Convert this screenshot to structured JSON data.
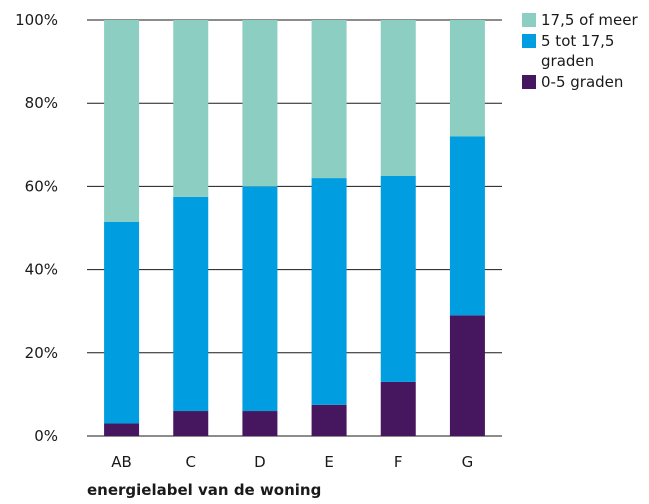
{
  "chart_data": {
    "type": "bar",
    "stacked": true,
    "title": "",
    "xlabel": "energielabel van de woning",
    "ylabel": "",
    "categories": [
      "AB",
      "C",
      "D",
      "E",
      "F",
      "G"
    ],
    "ylim": [
      0,
      100
    ],
    "yticks": [
      "0%",
      "20%",
      "40%",
      "60%",
      "80%",
      "100%"
    ],
    "ytick_values": [
      0,
      20,
      40,
      60,
      80,
      100
    ],
    "grid": true,
    "legend_position": "top-right",
    "series": [
      {
        "name": "0-5 graden",
        "color": "#46175e",
        "values": [
          3,
          6,
          6,
          7.5,
          13,
          29
        ]
      },
      {
        "name": "5 tot 17,5 graden",
        "color": "#009ee0",
        "values": [
          48.5,
          51.5,
          54,
          54.5,
          49.5,
          43
        ]
      },
      {
        "name": "17,5 of meer",
        "color": "#8ccec1",
        "values": [
          48.5,
          42.5,
          40,
          38,
          37.5,
          28
        ]
      }
    ],
    "legend": [
      {
        "lines": [
          "17,5 of meer"
        ],
        "color": "#8ccec1"
      },
      {
        "lines": [
          "5 tot 17,5",
          "graden"
        ],
        "color": "#009ee0"
      },
      {
        "lines": [
          "0-5 graden"
        ],
        "color": "#46175e"
      }
    ]
  }
}
